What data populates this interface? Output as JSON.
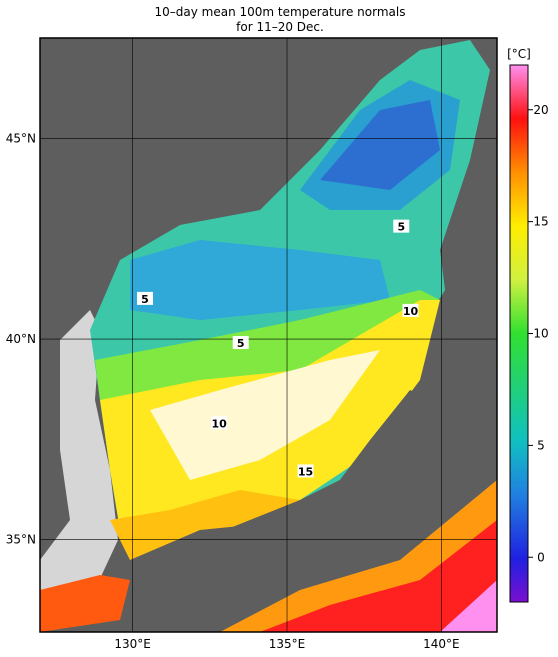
{
  "title": "10–day mean 100m temperature normals",
  "subtitle": "for 11–20 Dec.",
  "map": {
    "xlim": [
      127,
      141.8
    ],
    "ylim": [
      32.7,
      47.5
    ],
    "xticks": [
      {
        "value": 130,
        "label": "130°E"
      },
      {
        "value": 135,
        "label": "135°E"
      },
      {
        "value": 140,
        "label": "140°E"
      }
    ],
    "yticks": [
      {
        "value": 35,
        "label": "35°N"
      },
      {
        "value": 40,
        "label": "40°N"
      },
      {
        "value": 45,
        "label": "45°N"
      }
    ],
    "contour_labels": [
      {
        "value": 5,
        "lon": 138.7,
        "lat": 42.8
      },
      {
        "value": 5,
        "lon": 130.4,
        "lat": 41.0
      },
      {
        "value": 10,
        "lon": 139.0,
        "lat": 40.7
      },
      {
        "value": 5,
        "lon": 133.5,
        "lat": 39.9
      },
      {
        "value": 10,
        "lon": 132.8,
        "lat": 37.9
      },
      {
        "value": 15,
        "lon": 135.6,
        "lat": 36.7
      }
    ]
  },
  "colorbar": {
    "unit": "[°C]",
    "lim": [
      -2,
      22
    ],
    "ticks": [
      0,
      5,
      10,
      15,
      20
    ]
  }
}
